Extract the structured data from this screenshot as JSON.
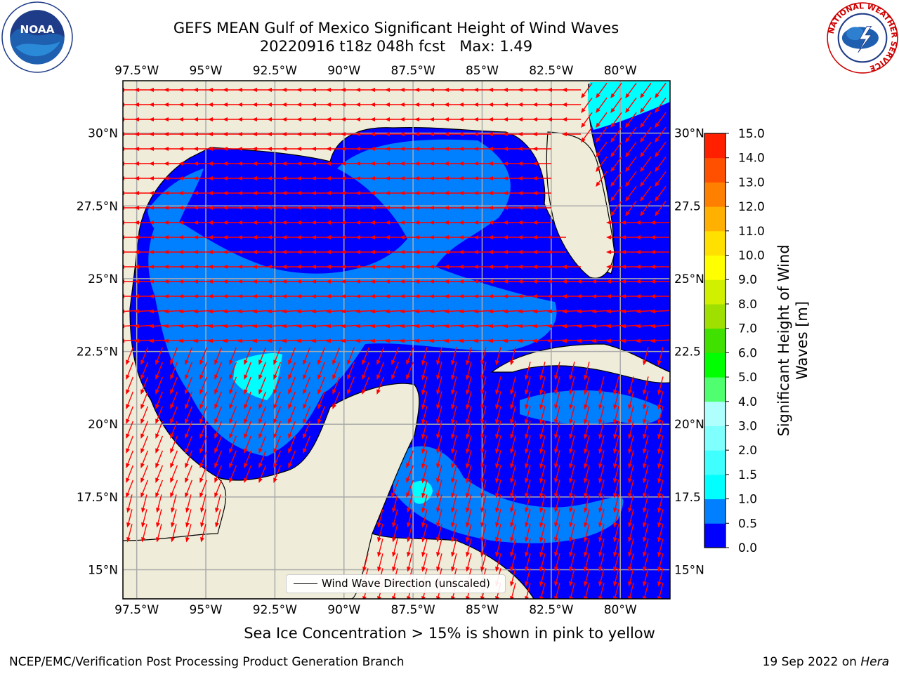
{
  "title": {
    "line1": "GEFS MEAN Gulf of Mexico Significant Height of Wind Waves",
    "line2": "20220916 t18z 048h fcst   Max: 1.49"
  },
  "map": {
    "lon_ticks": [
      "97.5°W",
      "95°W",
      "92.5°W",
      "90°W",
      "87.5°W",
      "85°W",
      "82.5°W",
      "80°W"
    ],
    "lon_values": [
      -97.5,
      -95,
      -92.5,
      -90,
      -87.5,
      -85,
      -82.5,
      -80
    ],
    "lat_ticks_left": [
      "30°N",
      "27.5°N",
      "25°N",
      "22.5°N",
      "20°N",
      "17.5°N",
      "15°N"
    ],
    "lat_ticks_right": [
      "30°N",
      "27.5",
      "25°N",
      "22.5",
      "20°N",
      "17.5",
      "15°N"
    ],
    "lat_values": [
      30,
      27.5,
      25,
      22.5,
      20,
      17.5,
      15
    ],
    "extent": {
      "lon_min": -98,
      "lon_max": -78.2,
      "lat_min": 14,
      "lat_max": 31.8
    },
    "land_color": "#efedd9",
    "arrow_color": "#ff0000",
    "legend_label": "Wind Wave Direction (unscaled)"
  },
  "colorbar": {
    "label": "Significant Height of Wind Waves [m]",
    "label_line1": "Significant Height of Wind",
    "label_line2": "Waves [m]",
    "ticks": [
      "0.0",
      "0.5",
      "1.0",
      "1.5",
      "2.0",
      "3.0",
      "4.0",
      "5.0",
      "6.0",
      "7.0",
      "8.0",
      "9.0",
      "10.0",
      "11.0",
      "12.0",
      "13.0",
      "14.0",
      "15.0"
    ],
    "colors": [
      "#0000ff",
      "#0080ff",
      "#00ffff",
      "#40ffff",
      "#80ffff",
      "#b0ffff",
      "#50ff70",
      "#00ff00",
      "#40e000",
      "#a0e000",
      "#d0f000",
      "#ffff00",
      "#ffe000",
      "#ffb000",
      "#ff8000",
      "#ff5000",
      "#ff2000",
      "#ff0000"
    ]
  },
  "sea_ice_note": "Sea Ice Concentration > 15% is shown in pink to yellow",
  "credits": {
    "left": "NCEP/EMC/Verification Post Processing Product Generation Branch",
    "right_date": "19 Sep 2022 on ",
    "right_host": "Hera"
  },
  "logos": {
    "noaa": "NOAA",
    "nws_ring": "NATIONAL WEATHER SERVICE"
  }
}
